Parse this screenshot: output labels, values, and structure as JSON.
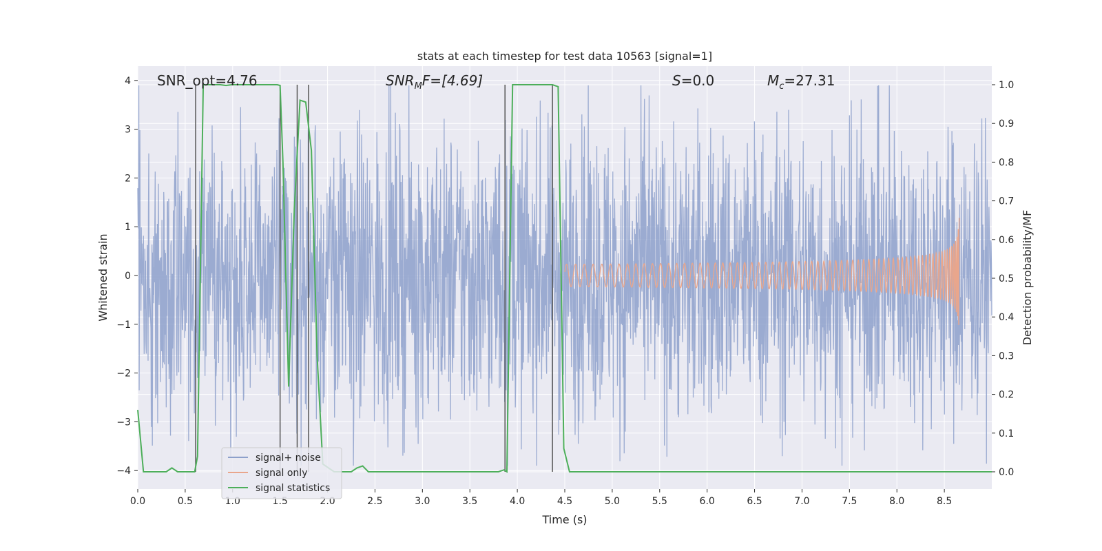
{
  "chart_data": {
    "type": "line",
    "title": "stats at each timestep for test data 10563 [signal=1]",
    "xlabel": "Time (s)",
    "ylabel_left": "Whitened strain",
    "ylabel_right": "Detection probability/MF",
    "xlim": [
      0.0,
      9.0
    ],
    "ylim_left": [
      -4.4,
      4.3
    ],
    "ylim_right": [
      -0.047,
      1.047
    ],
    "x_ticks": [
      "0.0",
      "0.5",
      "1.0",
      "1.5",
      "2.0",
      "2.5",
      "3.0",
      "3.5",
      "4.0",
      "4.5",
      "5.0",
      "5.5",
      "6.0",
      "6.5",
      "7.0",
      "7.5",
      "8.0",
      "8.5"
    ],
    "y_left_ticks": [
      "4",
      "3",
      "2",
      "1",
      "0",
      "−1",
      "−2",
      "−3",
      "−4"
    ],
    "y_right_ticks": [
      "1.0",
      "0.9",
      "0.8",
      "0.7",
      "0.6",
      "0.5",
      "0.4",
      "0.3",
      "0.2",
      "0.1",
      "0.0"
    ],
    "annotations": {
      "snr_opt": "SNR_opt=4.76",
      "snr_mf_italic": "SNR",
      "snr_mf_sub": "M",
      "snr_mf_rest": "F=[4.69]",
      "s_italic": "S",
      "s_rest": "=0.0",
      "mc_italic": "M",
      "mc_sub": "c",
      "mc_rest": "=27.31"
    },
    "series": [
      {
        "name": "signal+ noise",
        "color": "#8da0cb",
        "description": "whitened noisy strain, roughly within -2.5..2.5 with peaks to about ±3.9",
        "typical_amplitude": 2.0
      },
      {
        "name": "signal only",
        "color": "#e9a68c",
        "description": "chirp waveform growing towards merger near t=8.66 s",
        "merger_time": 8.66,
        "peak_amplitude": 1.3
      },
      {
        "name": "signal statistics",
        "color": "#4daf5a",
        "x": [
          0.0,
          0.06,
          0.12,
          0.18,
          0.24,
          0.3,
          0.36,
          0.42,
          0.48,
          0.54,
          0.6,
          0.63,
          0.69,
          0.75,
          0.81,
          0.87,
          0.93,
          0.99,
          1.05,
          1.11,
          1.17,
          1.23,
          1.29,
          1.35,
          1.41,
          1.47,
          1.5,
          1.53,
          1.59,
          1.65,
          1.71,
          1.77,
          1.83,
          1.89,
          1.95,
          2.01,
          2.07,
          2.13,
          2.19,
          2.25,
          2.31,
          2.37,
          2.43,
          2.49,
          2.55,
          2.61,
          3.0,
          3.5,
          3.8,
          3.86,
          3.89,
          3.95,
          4.01,
          4.07,
          4.13,
          4.19,
          4.25,
          4.31,
          4.37,
          4.43,
          4.49,
          4.55,
          4.61,
          5.0,
          6.0,
          7.0,
          8.0,
          9.0
        ],
        "y": [
          0.16,
          0.0,
          0.0,
          0.0,
          0.0,
          0.0,
          0.01,
          0.0,
          0.0,
          0.0,
          0.0,
          0.04,
          1.0,
          1.0,
          1.0,
          1.0,
          0.998,
          1.0,
          1.0,
          1.0,
          1.0,
          1.0,
          1.0,
          1.0,
          1.0,
          1.0,
          0.998,
          0.8,
          0.22,
          0.68,
          0.96,
          0.955,
          0.83,
          0.3,
          0.02,
          0.01,
          0.0,
          0.0,
          0.0,
          0.0,
          0.01,
          0.015,
          0.0,
          0.0,
          0.0,
          0.0,
          0.0,
          0.0,
          0.0,
          0.005,
          0.0,
          1.0,
          1.0,
          1.0,
          1.0,
          1.0,
          1.0,
          1.0,
          1.0,
          0.995,
          0.06,
          0.0,
          0.0,
          0.0,
          0.0,
          0.0,
          0.0,
          0.0
        ]
      }
    ],
    "vertical_markers": {
      "color": "#555555",
      "x": [
        0.61,
        1.5,
        1.68,
        1.8,
        3.87,
        4.37
      ]
    },
    "legend": {
      "location": "lower-left",
      "entries": [
        "signal+ noise",
        "signal only",
        "signal statistics"
      ]
    },
    "grid": true,
    "background": "#eaeaf2"
  }
}
